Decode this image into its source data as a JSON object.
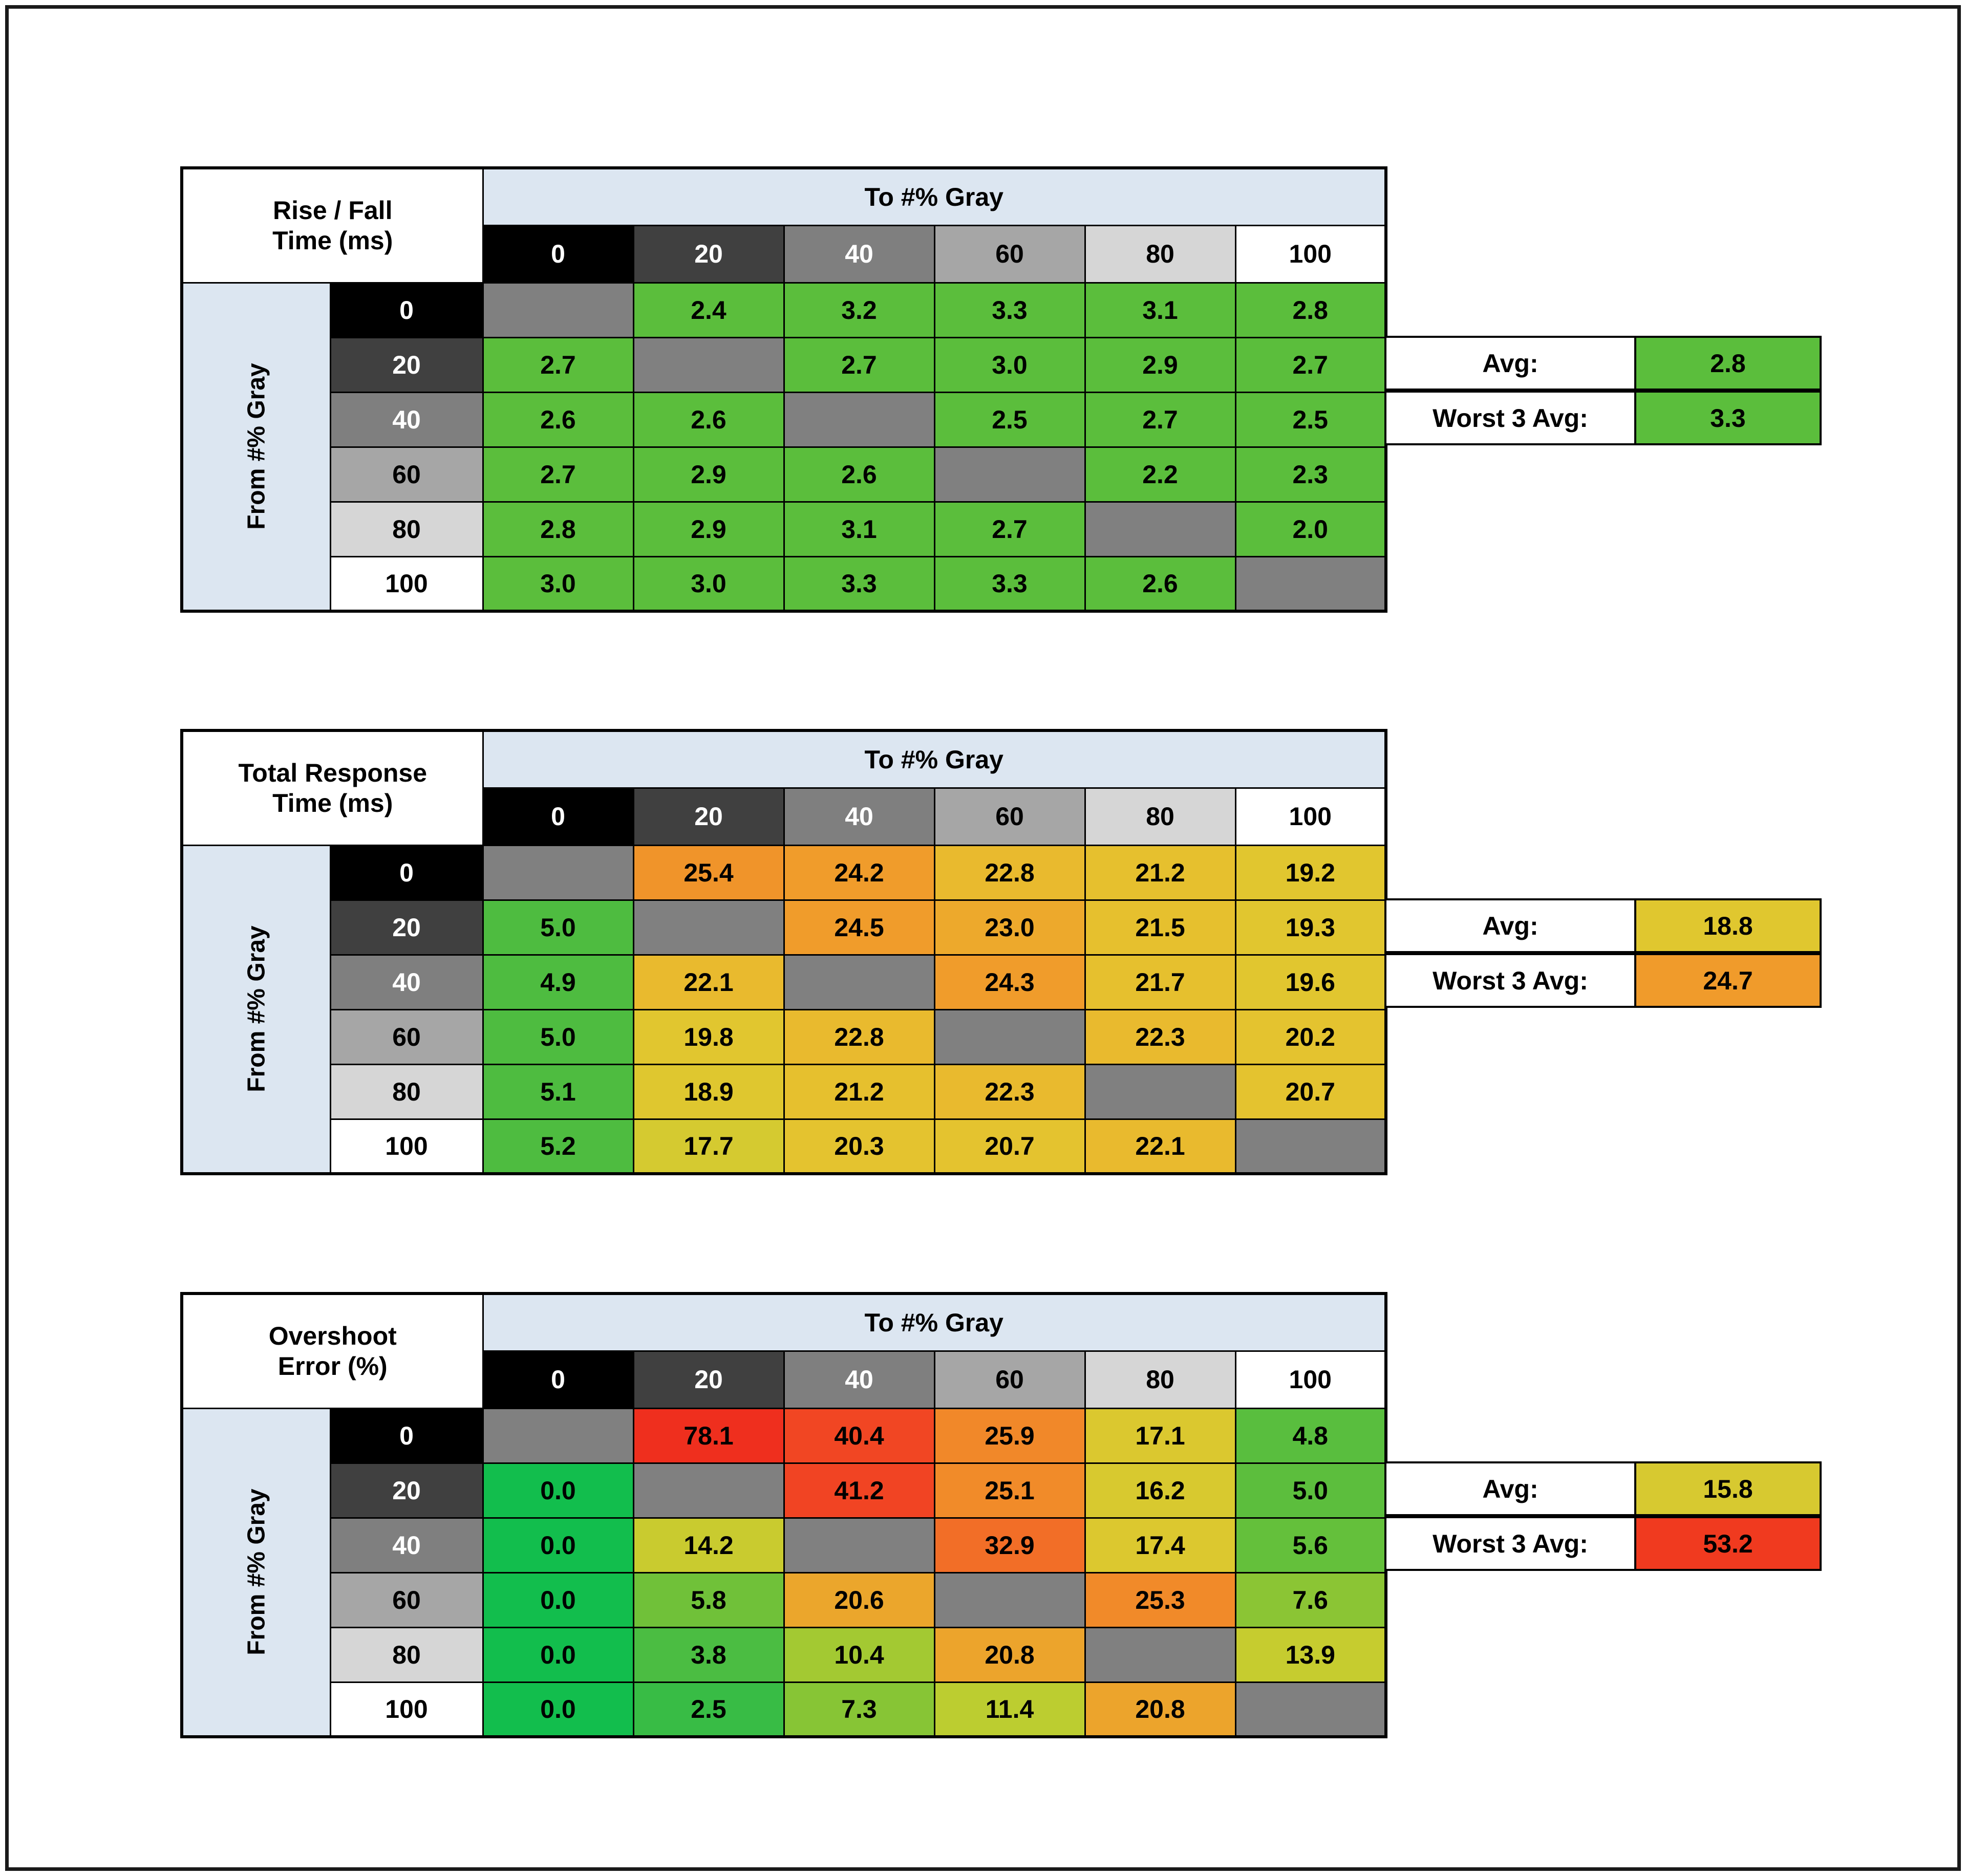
{
  "page": {
    "background": "#ffffff",
    "frame_color": "#000000"
  },
  "tables": [
    {
      "id": "rise-fall-time",
      "title_lines": [
        "Rise / Fall",
        "Time (ms)"
      ],
      "to_header": "To #% Gray",
      "from_header": "From #% Gray",
      "levels": [
        "0",
        "20",
        "40",
        "60",
        "80",
        "100"
      ],
      "level_colors": [
        "#000000",
        "#404040",
        "#7F7F7F",
        "#A6A6A6",
        "#D6D6D6",
        "#FFFFFF"
      ],
      "level_text_colors": [
        "#FFFFFF",
        "#FFFFFF",
        "#FFFFFF",
        "#000000",
        "#000000",
        "#000000"
      ],
      "diag_color": "#808080",
      "rows": [
        {
          "from": "0",
          "cells": [
            null,
            {
              "v": "2.4",
              "c": "#5BBE3C"
            },
            {
              "v": "3.2",
              "c": "#5BBE3C"
            },
            {
              "v": "3.3",
              "c": "#5BBE3C"
            },
            {
              "v": "3.1",
              "c": "#5BBE3C"
            },
            {
              "v": "2.8",
              "c": "#5BBE3C"
            }
          ]
        },
        {
          "from": "20",
          "cells": [
            {
              "v": "2.7",
              "c": "#5BBE3C"
            },
            null,
            {
              "v": "2.7",
              "c": "#5BBE3C"
            },
            {
              "v": "3.0",
              "c": "#5BBE3C"
            },
            {
              "v": "2.9",
              "c": "#5BBE3C"
            },
            {
              "v": "2.7",
              "c": "#5BBE3C"
            }
          ]
        },
        {
          "from": "40",
          "cells": [
            {
              "v": "2.6",
              "c": "#5BBE3C"
            },
            {
              "v": "2.6",
              "c": "#5BBE3C"
            },
            null,
            {
              "v": "2.5",
              "c": "#5BBE3C"
            },
            {
              "v": "2.7",
              "c": "#5BBE3C"
            },
            {
              "v": "2.5",
              "c": "#5BBE3C"
            }
          ]
        },
        {
          "from": "60",
          "cells": [
            {
              "v": "2.7",
              "c": "#5BBE3C"
            },
            {
              "v": "2.9",
              "c": "#5BBE3C"
            },
            {
              "v": "2.6",
              "c": "#5BBE3C"
            },
            null,
            {
              "v": "2.2",
              "c": "#5BBE3C"
            },
            {
              "v": "2.3",
              "c": "#5BBE3C"
            }
          ]
        },
        {
          "from": "80",
          "cells": [
            {
              "v": "2.8",
              "c": "#5BBE3C"
            },
            {
              "v": "2.9",
              "c": "#5BBE3C"
            },
            {
              "v": "3.1",
              "c": "#5BBE3C"
            },
            {
              "v": "2.7",
              "c": "#5BBE3C"
            },
            null,
            {
              "v": "2.0",
              "c": "#5BBE3C"
            }
          ]
        },
        {
          "from": "100",
          "cells": [
            {
              "v": "3.0",
              "c": "#5BBE3C"
            },
            {
              "v": "3.0",
              "c": "#5BBE3C"
            },
            {
              "v": "3.3",
              "c": "#5BBE3C"
            },
            {
              "v": "3.3",
              "c": "#5BBE3C"
            },
            {
              "v": "2.6",
              "c": "#5BBE3C"
            },
            null
          ]
        }
      ],
      "summary": {
        "avg_label": "Avg:",
        "avg_value": "2.8",
        "avg_color": "#5BBE3C",
        "worst_label": "Worst 3 Avg:",
        "worst_value": "3.3",
        "worst_color": "#5BBE3C"
      }
    },
    {
      "id": "total-response-time",
      "title_lines": [
        "Total Response",
        "Time (ms)"
      ],
      "to_header": "To #% Gray",
      "from_header": "From #% Gray",
      "levels": [
        "0",
        "20",
        "40",
        "60",
        "80",
        "100"
      ],
      "level_colors": [
        "#000000",
        "#404040",
        "#7F7F7F",
        "#A6A6A6",
        "#D6D6D6",
        "#FFFFFF"
      ],
      "level_text_colors": [
        "#FFFFFF",
        "#FFFFFF",
        "#FFFFFF",
        "#000000",
        "#000000",
        "#000000"
      ],
      "diag_color": "#808080",
      "rows": [
        {
          "from": "0",
          "cells": [
            null,
            {
              "v": "25.4",
              "c": "#F0942A"
            },
            {
              "v": "24.2",
              "c": "#F09C2B"
            },
            {
              "v": "22.8",
              "c": "#E9BA2E"
            },
            {
              "v": "21.2",
              "c": "#E6C02E"
            },
            {
              "v": "19.2",
              "c": "#E1C62F"
            }
          ]
        },
        {
          "from": "20",
          "cells": [
            {
              "v": "5.0",
              "c": "#4EBC40"
            },
            null,
            {
              "v": "24.5",
              "c": "#F09C2B"
            },
            {
              "v": "23.0",
              "c": "#EDA92C"
            },
            {
              "v": "21.5",
              "c": "#E6C02E"
            },
            {
              "v": "19.3",
              "c": "#E1C62F"
            }
          ]
        },
        {
          "from": "40",
          "cells": [
            {
              "v": "4.9",
              "c": "#4EBC40"
            },
            {
              "v": "22.1",
              "c": "#E9BA2E"
            },
            null,
            {
              "v": "24.3",
              "c": "#F09C2B"
            },
            {
              "v": "21.7",
              "c": "#E6C02E"
            },
            {
              "v": "19.6",
              "c": "#E1C62F"
            }
          ]
        },
        {
          "from": "60",
          "cells": [
            {
              "v": "5.0",
              "c": "#4EBC40"
            },
            {
              "v": "19.8",
              "c": "#E1C62F"
            },
            {
              "v": "22.8",
              "c": "#E9BA2E"
            },
            null,
            {
              "v": "22.3",
              "c": "#E9BA2E"
            },
            {
              "v": "20.2",
              "c": "#E4C32F"
            }
          ]
        },
        {
          "from": "80",
          "cells": [
            {
              "v": "5.1",
              "c": "#4EBC40"
            },
            {
              "v": "18.9",
              "c": "#DFC72F"
            },
            {
              "v": "21.2",
              "c": "#E6C02E"
            },
            {
              "v": "22.3",
              "c": "#E9BA2E"
            },
            null,
            {
              "v": "20.7",
              "c": "#E4C32F"
            }
          ]
        },
        {
          "from": "100",
          "cells": [
            {
              "v": "5.2",
              "c": "#4EBC40"
            },
            {
              "v": "17.7",
              "c": "#D5CA30"
            },
            {
              "v": "20.3",
              "c": "#E4C32F"
            },
            {
              "v": "20.7",
              "c": "#E4C32F"
            },
            {
              "v": "22.1",
              "c": "#E9BA2E"
            },
            null
          ]
        }
      ],
      "summary": {
        "avg_label": "Avg:",
        "avg_value": "18.8",
        "avg_color": "#E0C72F",
        "worst_label": "Worst 3 Avg:",
        "worst_value": "24.7",
        "worst_color": "#F09B2B"
      }
    },
    {
      "id": "overshoot-error",
      "title_lines": [
        "Overshoot",
        "Error (%)"
      ],
      "to_header": "To #% Gray",
      "from_header": "From #% Gray",
      "levels": [
        "0",
        "20",
        "40",
        "60",
        "80",
        "100"
      ],
      "level_colors": [
        "#000000",
        "#404040",
        "#7F7F7F",
        "#A6A6A6",
        "#D6D6D6",
        "#FFFFFF"
      ],
      "level_text_colors": [
        "#FFFFFF",
        "#FFFFFF",
        "#FFFFFF",
        "#000000",
        "#000000",
        "#000000"
      ],
      "diag_color": "#808080",
      "rows": [
        {
          "from": "0",
          "cells": [
            null,
            {
              "v": "78.1",
              "c": "#EF2F1E"
            },
            {
              "v": "40.4",
              "c": "#F14623"
            },
            {
              "v": "25.9",
              "c": "#F18829"
            },
            {
              "v": "17.1",
              "c": "#DBC82F"
            },
            {
              "v": "4.8",
              "c": "#59BE3E"
            }
          ]
        },
        {
          "from": "20",
          "cells": [
            {
              "v": "0.0",
              "c": "#12BE4D"
            },
            null,
            {
              "v": "41.2",
              "c": "#F14423"
            },
            {
              "v": "25.1",
              "c": "#F18B29"
            },
            {
              "v": "16.2",
              "c": "#D8C92F"
            },
            {
              "v": "5.0",
              "c": "#5CBE3D"
            }
          ]
        },
        {
          "from": "40",
          "cells": [
            {
              "v": "0.0",
              "c": "#12BE4D"
            },
            {
              "v": "14.2",
              "c": "#C9CB2F"
            },
            null,
            {
              "v": "32.9",
              "c": "#F26E27"
            },
            {
              "v": "17.4",
              "c": "#DCC82F"
            },
            {
              "v": "5.6",
              "c": "#64C03B"
            }
          ]
        },
        {
          "from": "60",
          "cells": [
            {
              "v": "0.0",
              "c": "#12BE4D"
            },
            {
              "v": "5.8",
              "c": "#70C139"
            },
            {
              "v": "20.6",
              "c": "#EBA62C"
            },
            null,
            {
              "v": "25.3",
              "c": "#F18A29"
            },
            {
              "v": "7.6",
              "c": "#8BC534"
            }
          ]
        },
        {
          "from": "80",
          "cells": [
            {
              "v": "0.0",
              "c": "#12BE4D"
            },
            {
              "v": "3.8",
              "c": "#4BBD42"
            },
            {
              "v": "10.4",
              "c": "#A3C932"
            },
            {
              "v": "20.8",
              "c": "#ECA42C"
            },
            null,
            {
              "v": "13.9",
              "c": "#C6CC2F"
            }
          ]
        },
        {
          "from": "100",
          "cells": [
            {
              "v": "0.0",
              "c": "#12BE4D"
            },
            {
              "v": "2.5",
              "c": "#38BC45"
            },
            {
              "v": "7.3",
              "c": "#87C535"
            },
            {
              "v": "11.4",
              "c": "#BCCD30"
            },
            {
              "v": "20.8",
              "c": "#ECA42C"
            },
            null
          ]
        }
      ],
      "summary": {
        "avg_label": "Avg:",
        "avg_value": "15.8",
        "avg_color": "#D7C930",
        "worst_label": "Worst 3 Avg:",
        "worst_value": "53.2",
        "worst_color": "#F03A1F"
      }
    }
  ],
  "chart_data": [
    {
      "type": "heatmap",
      "title": "Rise / Fall Time (ms)",
      "xlabel": "To #% Gray",
      "ylabel": "From #% Gray",
      "x_ticks": [
        0,
        20,
        40,
        60,
        80,
        100
      ],
      "y_ticks": [
        0,
        20,
        40,
        60,
        80,
        100
      ],
      "values": [
        [
          null,
          2.4,
          3.2,
          3.3,
          3.1,
          2.8
        ],
        [
          2.7,
          null,
          2.7,
          3.0,
          2.9,
          2.7
        ],
        [
          2.6,
          2.6,
          null,
          2.5,
          2.7,
          2.5
        ],
        [
          2.7,
          2.9,
          2.6,
          null,
          2.2,
          2.3
        ],
        [
          2.8,
          2.9,
          3.1,
          2.7,
          null,
          2.0
        ],
        [
          3.0,
          3.0,
          3.3,
          3.3,
          2.6,
          null
        ]
      ],
      "avg": 2.8,
      "worst_3_avg": 3.3
    },
    {
      "type": "heatmap",
      "title": "Total Response Time (ms)",
      "xlabel": "To #% Gray",
      "ylabel": "From #% Gray",
      "x_ticks": [
        0,
        20,
        40,
        60,
        80,
        100
      ],
      "y_ticks": [
        0,
        20,
        40,
        60,
        80,
        100
      ],
      "values": [
        [
          null,
          25.4,
          24.2,
          22.8,
          21.2,
          19.2
        ],
        [
          5.0,
          null,
          24.5,
          23.0,
          21.5,
          19.3
        ],
        [
          4.9,
          22.1,
          null,
          24.3,
          21.7,
          19.6
        ],
        [
          5.0,
          19.8,
          22.8,
          null,
          22.3,
          20.2
        ],
        [
          5.1,
          18.9,
          21.2,
          22.3,
          null,
          20.7
        ],
        [
          5.2,
          17.7,
          20.3,
          20.7,
          22.1,
          null
        ]
      ],
      "avg": 18.8,
      "worst_3_avg": 24.7
    },
    {
      "type": "heatmap",
      "title": "Overshoot Error (%)",
      "xlabel": "To #% Gray",
      "ylabel": "From #% Gray",
      "x_ticks": [
        0,
        20,
        40,
        60,
        80,
        100
      ],
      "y_ticks": [
        0,
        20,
        40,
        60,
        80,
        100
      ],
      "values": [
        [
          null,
          78.1,
          40.4,
          25.9,
          17.1,
          4.8
        ],
        [
          0.0,
          null,
          41.2,
          25.1,
          16.2,
          5.0
        ],
        [
          0.0,
          14.2,
          null,
          32.9,
          17.4,
          5.6
        ],
        [
          0.0,
          5.8,
          20.6,
          null,
          25.3,
          7.6
        ],
        [
          0.0,
          3.8,
          10.4,
          20.8,
          null,
          13.9
        ],
        [
          0.0,
          2.5,
          7.3,
          11.4,
          20.8,
          null
        ]
      ],
      "avg": 15.8,
      "worst_3_avg": 53.2
    }
  ]
}
